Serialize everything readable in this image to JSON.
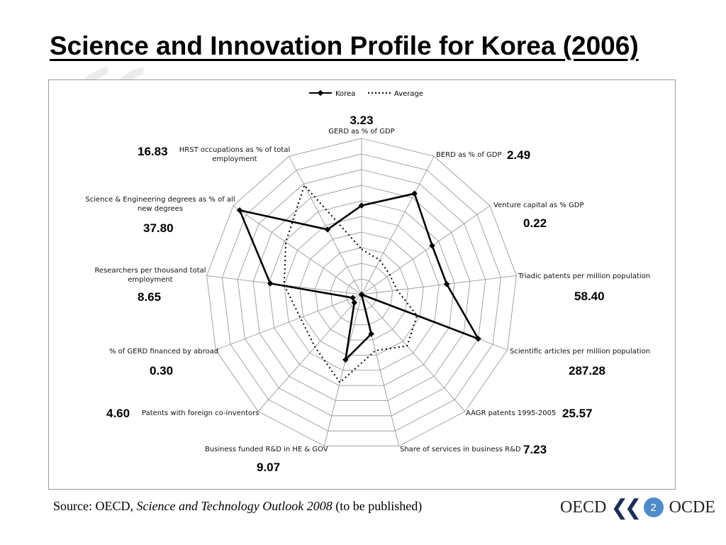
{
  "slide": {
    "title": "Science and Innovation Profile for Korea (2006)",
    "page_number": "2",
    "source_prefix": "Source: OECD, ",
    "source_italic": "Science and Technology Outlook 2008",
    "source_suffix": " (to be published)",
    "logo_left": "OECD",
    "logo_right": "OCDE"
  },
  "chart_data": {
    "type": "radar",
    "legend": [
      "Korea",
      "Average"
    ],
    "axes": [
      {
        "label": "GERD as % of GDP",
        "value": "3.23"
      },
      {
        "label": "BERD as % of GDP",
        "value": "2.49"
      },
      {
        "label": "Venture capital as % GDP",
        "value": "0.22"
      },
      {
        "label": "Triadic patents  per million population",
        "value": "58.40"
      },
      {
        "label": "Scientific articles per million population",
        "value": "287.28"
      },
      {
        "label": "AAGR patents 1995-2005",
        "value": "25.57"
      },
      {
        "label": "Share of services in business R&D",
        "value": "7.23"
      },
      {
        "label": "Business funded R&D in HE & GOV",
        "value": "9.07"
      },
      {
        "label": "Patents with foreign co-inventors",
        "value": "4.60"
      },
      {
        "label": "% of GERD financed by abroad",
        "value": "0.30"
      },
      {
        "label": "Researchers per thousand total employment",
        "value": "8.65"
      },
      {
        "label": "Science & Engineering degrees as % of all new degrees",
        "value": "37.80"
      },
      {
        "label": "HRST occupations as % of total employment",
        "value": "16.83"
      }
    ],
    "rings": 10,
    "series": [
      {
        "name": "Korea",
        "style": "solid",
        "color": "#000000",
        "values": [
          0.57,
          0.73,
          0.55,
          0.55,
          0.8,
          0.0,
          0.26,
          0.43,
          0.07,
          0.06,
          0.59,
          0.95,
          0.47
        ]
      },
      {
        "name": "Average",
        "style": "dotted",
        "color": "#000000",
        "values": [
          0.29,
          0.25,
          0.22,
          0.23,
          0.38,
          0.44,
          0.37,
          0.58,
          0.45,
          0.42,
          0.5,
          0.59,
          0.79
        ]
      }
    ]
  }
}
